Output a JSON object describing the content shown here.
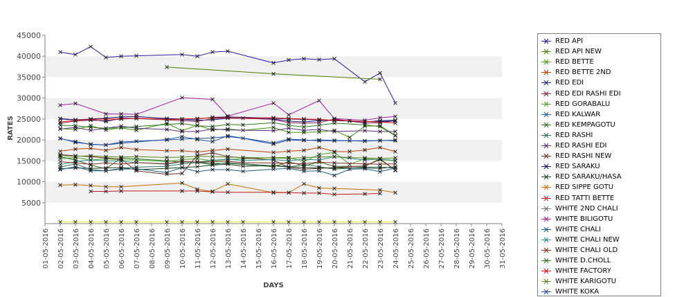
{
  "chart_data": {
    "type": "line",
    "xlabel": "DAYS",
    "ylabel": "RATES",
    "ylim": [
      0,
      45000
    ],
    "yticks": [
      5000,
      10000,
      15000,
      20000,
      25000,
      30000,
      35000,
      40000,
      45000
    ],
    "xcategories": [
      "01-05-2016",
      "02-05-2016",
      "03-05-2016",
      "04-05-2016",
      "05-05-2016",
      "06-05-2016",
      "07-05-2016",
      "08-05-2016",
      "09-05-2016",
      "10-05-2016",
      "11-05-2016",
      "12-05-2016",
      "13-05-2016",
      "14-05-2016",
      "15-05-2016",
      "16-05-2016",
      "17-05-2016",
      "18-05-2016",
      "19-05-2016",
      "20-05-2016",
      "21-05-2016",
      "22-05-2016",
      "23-05-2016",
      "24-05-2016",
      "25-05-2016",
      "26-05-2016",
      "27-05-2016",
      "28-05-2016",
      "29-05-2016",
      "30-05-2016",
      "31-05-2016"
    ],
    "grid": "alternating bands",
    "legend": "right",
    "series": [
      {
        "name": "RED API",
        "color": "#2a1aa8",
        "x": [
          2,
          3,
          4,
          5,
          6,
          7,
          10,
          11,
          12,
          13,
          16,
          17,
          18,
          19,
          20,
          22,
          23,
          24
        ],
        "values": [
          41000,
          40400,
          42300,
          39700,
          40000,
          40100,
          40400,
          40000,
          41000,
          41200,
          38400,
          39100,
          39400,
          39200,
          39400,
          33900,
          36000,
          28800
        ]
      },
      {
        "name": "RED API NEW",
        "color": "#4c7a00",
        "x": [
          9,
          16,
          23
        ],
        "values": [
          37400,
          35800,
          34500
        ]
      },
      {
        "name": "RED BETTE",
        "color": "#3a9a00",
        "x": [
          2,
          3,
          4,
          5,
          6,
          7,
          9,
          10,
          11,
          12,
          13,
          14,
          16,
          17,
          18,
          19,
          20,
          21,
          22,
          23,
          24
        ],
        "values": [
          22700,
          22500,
          23400,
          22400,
          22900,
          22300,
          24000,
          22200,
          23500,
          22400,
          22600,
          22300,
          23000,
          21800,
          21800,
          21900,
          22300,
          20600,
          23300,
          23400,
          21100
        ]
      },
      {
        "name": "RED BETTE 2ND",
        "color": "#c04000",
        "x": [
          2,
          3,
          4,
          5,
          6,
          7,
          9,
          10,
          11,
          12,
          13,
          16,
          17,
          18,
          19,
          20,
          21,
          22,
          23,
          24
        ],
        "values": [
          17300,
          17800,
          18000,
          17500,
          18200,
          17700,
          17400,
          17400,
          17100,
          17500,
          17800,
          17000,
          17300,
          17500,
          18200,
          17200,
          17200,
          17600,
          18200,
          17200
        ]
      },
      {
        "name": "RED EDI",
        "color": "#1a1a90",
        "x": [
          2,
          3,
          4,
          5,
          6,
          10,
          11,
          12,
          13,
          16,
          17,
          18,
          19,
          20,
          22,
          23,
          24
        ],
        "values": [
          25000,
          24800,
          24900,
          24400,
          25200,
          24900,
          24700,
          24800,
          25200,
          25000,
          24500,
          24300,
          24600,
          24800,
          24300,
          24600,
          24700
        ]
      },
      {
        "name": "RED EDI RASHI EDI",
        "color": "#8a1a4a",
        "x": [
          2,
          3,
          4,
          5,
          6,
          7,
          9,
          10,
          11,
          12,
          13,
          16,
          17,
          18,
          19,
          20,
          22,
          23,
          24
        ],
        "values": [
          24000,
          24500,
          24700,
          24600,
          25000,
          25100,
          24800,
          24600,
          24400,
          25100,
          25300,
          24900,
          24100,
          24000,
          24100,
          25000,
          24000,
          24100,
          24600
        ]
      },
      {
        "name": "RED GORABALU",
        "color": "#4aa82a",
        "x": [
          2,
          3,
          4,
          5,
          6,
          7,
          9,
          10,
          11,
          12,
          13,
          14,
          16,
          17,
          18,
          19,
          20,
          21,
          22,
          23,
          24
        ],
        "values": [
          15500,
          15800,
          15200,
          15500,
          15200,
          15200,
          14800,
          15300,
          15500,
          15000,
          15300,
          15500,
          15800,
          15800,
          14800,
          16500,
          17000,
          14200,
          15500,
          15300,
          15000
        ]
      },
      {
        "name": "RED KALWAR",
        "color": "#1a5aa8",
        "x": [
          2,
          3,
          4,
          5,
          6,
          9,
          10,
          11,
          12,
          13,
          16,
          17,
          18,
          19,
          20,
          22,
          23,
          24
        ],
        "values": [
          20400,
          19400,
          19000,
          18800,
          19200,
          20100,
          20800,
          20100,
          19600,
          21000,
          19300,
          20200,
          20000,
          19800,
          19800,
          19800,
          19800,
          20000
        ]
      },
      {
        "name": "RED KEMPAGOTU",
        "color": "#2a6a1a",
        "x": [
          2,
          3,
          4,
          5,
          6,
          9,
          10,
          11,
          12,
          13,
          16,
          17,
          18,
          19,
          20,
          22,
          23,
          24
        ],
        "values": [
          16000,
          15200,
          14000,
          13100,
          15700,
          15000,
          14700,
          14700,
          14400,
          14400,
          13600,
          14800,
          13800,
          14700,
          13700,
          13700,
          15500,
          12700
        ]
      },
      {
        "name": "RED RASHI",
        "color": "#2a6a5a",
        "x": [
          2,
          3,
          4,
          5,
          6,
          7,
          9,
          10,
          11,
          12,
          13,
          16,
          17,
          18,
          19,
          20,
          22,
          23,
          24
        ],
        "values": [
          13500,
          14300,
          12900,
          12600,
          13200,
          13500,
          13700,
          14300,
          14600,
          14100,
          14600,
          13800,
          13500,
          14100,
          13600,
          13000,
          13500,
          13500,
          13300
        ]
      },
      {
        "name": "RED RASHI EDI",
        "color": "#5a2a8a",
        "x": [
          2,
          3,
          4,
          5,
          6,
          7,
          9,
          10,
          11,
          12,
          13,
          16,
          17,
          18,
          19,
          20,
          22,
          23,
          24
        ],
        "values": [
          22600,
          23000,
          22300,
          22800,
          23300,
          22800,
          22500,
          22000,
          22000,
          22600,
          22400,
          22200,
          22800,
          22300,
          22500,
          22000,
          22200,
          22000,
          22000
        ]
      },
      {
        "name": "RED RASHI NEW",
        "color": "#6a2a1a",
        "x": [
          2,
          3,
          4,
          5,
          6,
          7,
          9,
          10,
          11,
          12,
          13,
          16,
          17,
          18,
          19,
          20,
          22,
          23,
          24
        ],
        "values": [
          16500,
          16200,
          16000,
          15700,
          15400,
          12600,
          11800,
          12000,
          16300,
          16900,
          16000,
          15200,
          13400,
          13000,
          13200,
          13400,
          13800,
          15300,
          12800
        ]
      },
      {
        "name": "RED SARAKU",
        "color": "#10106a",
        "x": [
          2,
          3,
          4,
          5,
          6,
          7,
          9,
          10,
          11,
          12,
          13,
          16,
          17,
          18,
          19,
          20,
          21,
          22,
          23,
          24
        ],
        "values": [
          25100,
          24800,
          25000,
          25200,
          25500,
          25600,
          25100,
          25000,
          25000,
          25400,
          25500,
          25200,
          25000,
          24900,
          24800,
          24600,
          24500,
          24400,
          24400,
          24500
        ]
      },
      {
        "name": "RED SARAKU/HASA",
        "color": "#1a3a1a",
        "x": [
          2,
          3,
          4,
          5,
          6,
          7,
          9,
          10,
          11,
          12,
          13,
          14,
          16,
          17,
          18,
          19,
          20,
          22,
          23,
          24
        ],
        "values": [
          13100,
          13300,
          13200,
          13300,
          13400,
          12900,
          13200,
          13400,
          13600,
          14000,
          14200,
          13700,
          13900,
          13600,
          13400,
          13300,
          13300,
          13300,
          13200,
          13600
        ]
      },
      {
        "name": "RED SIPPE GOTU",
        "color": "#c07000",
        "x": [
          2,
          3,
          4,
          5,
          6,
          10,
          11,
          12,
          13,
          16,
          17,
          18,
          19,
          20,
          23,
          24
        ],
        "values": [
          9200,
          9300,
          9100,
          8800,
          8800,
          9700,
          8200,
          7700,
          9500,
          7400,
          7400,
          9500,
          8500,
          8400,
          8000,
          7400
        ]
      },
      {
        "name": "RED TATTI BETTE",
        "color": "#c01a1a",
        "x": [
          4,
          5,
          6,
          10,
          11,
          12,
          13,
          16,
          17,
          18,
          19,
          20,
          22,
          23
        ],
        "values": [
          7700,
          7700,
          7800,
          7800,
          7800,
          7600,
          7500,
          7500,
          7400,
          7300,
          7300,
          7000,
          7100,
          7200
        ]
      },
      {
        "name": "WHITE 2ND CHALI",
        "color": "#707070",
        "x": [
          2,
          3,
          4,
          5,
          6,
          7,
          9,
          10,
          11,
          12,
          13,
          14,
          16,
          17,
          18,
          19,
          20,
          21,
          22,
          23,
          24
        ],
        "values": [
          400,
          400,
          400,
          400,
          400,
          400,
          400,
          400,
          400,
          400,
          400,
          400,
          400,
          400,
          400,
          400,
          400,
          400,
          400,
          400,
          400
        ]
      },
      {
        "name": "WHITE BILIGOTU",
        "color": "#a020a0",
        "x": [
          2,
          3,
          5,
          6,
          7,
          10,
          12,
          13,
          16,
          17,
          19,
          20,
          22,
          23,
          24
        ],
        "values": [
          28300,
          28700,
          26200,
          26200,
          26100,
          30100,
          29700,
          25700,
          28800,
          26000,
          29400,
          25100,
          24700,
          25300,
          25600
        ]
      },
      {
        "name": "WHITE CHALI",
        "color": "#1a5a8a",
        "x": [
          2,
          3,
          4,
          5,
          6,
          7,
          9,
          10,
          11,
          12,
          13,
          14,
          16,
          17,
          18,
          19,
          20,
          21,
          22,
          23,
          24
        ],
        "values": [
          12900,
          13600,
          12600,
          12600,
          13000,
          13100,
          12200,
          13400,
          12400,
          12900,
          12900,
          12500,
          13000,
          13200,
          12500,
          12600,
          11500,
          13000,
          13100,
          12400,
          13300
        ]
      },
      {
        "name": "WHITE CHALI NEW",
        "color": "#2a8a8a",
        "x": [
          2,
          3,
          4,
          5,
          6,
          7,
          9,
          10,
          11,
          12,
          13,
          14,
          16,
          17,
          18,
          19,
          20,
          22,
          23,
          24
        ],
        "values": [
          14100,
          14800,
          15200,
          15000,
          14900,
          14600,
          14200,
          14800,
          14700,
          15100,
          15400,
          15100,
          15300,
          15000,
          15400,
          15200,
          16000,
          15200,
          15400,
          15100
        ]
      },
      {
        "name": "WHITE CHALI OLD",
        "color": "#8a2a1a",
        "x": [
          2,
          3,
          4,
          5,
          6,
          7,
          9,
          10,
          11,
          12,
          13,
          14,
          16,
          17,
          18,
          19,
          20,
          22,
          23,
          24
        ],
        "values": [
          14800,
          14500,
          14200,
          14500,
          14200,
          14600,
          14300,
          14900,
          14700,
          14800,
          14900,
          14600,
          14500,
          14400,
          14300,
          14700,
          14500,
          14300,
          14200,
          14300
        ]
      },
      {
        "name": "WHITE D.CHOLL",
        "color": "#2a7a1a",
        "x": [
          2,
          3,
          4,
          5,
          6,
          7,
          9,
          10,
          11,
          12,
          13,
          14,
          16,
          17,
          18,
          19,
          20,
          22,
          23,
          24
        ],
        "values": [
          23500,
          23400,
          23000,
          22800,
          22900,
          23200,
          23700,
          23900,
          23400,
          23200,
          23700,
          23600,
          24100,
          23500,
          23100,
          23500,
          24000,
          23600,
          23200,
          21000
        ]
      },
      {
        "name": "WHITE FACTORY",
        "color": "#e01010",
        "x": [
          2,
          3,
          4,
          5,
          6,
          7,
          9,
          10,
          11,
          12,
          13,
          14,
          16,
          17,
          18,
          19,
          20,
          21,
          22,
          23,
          24
        ],
        "values": [
          24300,
          24700,
          24900,
          25000,
          25000,
          25200,
          24900,
          25000,
          25100,
          25300,
          25300,
          25200,
          25300,
          25100,
          25000,
          24900,
          24700,
          24600,
          24400,
          24300,
          24000
        ]
      },
      {
        "name": "WHITE KARIGOTU",
        "color": "#5a8a1a",
        "x": [
          2,
          3,
          4,
          5,
          6,
          7,
          9,
          10,
          11,
          12,
          13,
          14,
          16,
          17,
          18,
          19,
          20,
          21,
          22,
          23,
          24
        ],
        "values": [
          16300,
          16100,
          16200,
          16000,
          15900,
          16000,
          15800,
          15900,
          16100,
          16000,
          15900,
          15800,
          15700,
          15600,
          15800,
          15900,
          16000,
          15800,
          15700,
          15600,
          15700
        ]
      },
      {
        "name": "WHITE KOKA",
        "color": "#1a4aa8",
        "x": [
          2,
          3,
          4,
          5,
          6,
          7,
          9,
          10,
          11,
          12,
          13,
          14,
          16,
          17,
          18,
          19,
          20,
          21,
          22,
          23,
          24
        ],
        "values": [
          20300,
          19600,
          18900,
          18800,
          19500,
          19700,
          20000,
          20200,
          20300,
          20500,
          20800,
          20400,
          19000,
          20000,
          19900,
          20000,
          19900,
          19800,
          19700,
          19900,
          19800
        ]
      }
    ]
  },
  "colors": {
    "band": "#f0f0f0",
    "axis": "#808080",
    "marker": "#000000",
    "yellow_line": "#e6e600"
  }
}
